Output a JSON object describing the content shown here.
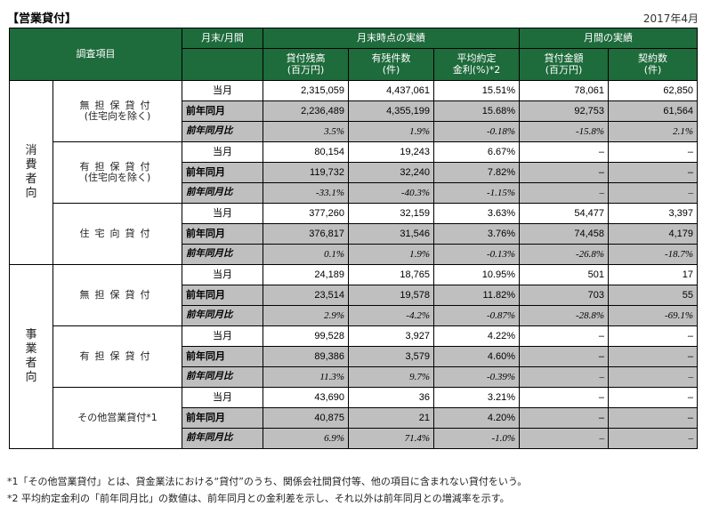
{
  "cut_top_text": "",
  "header": {
    "section_label": "【営業貸付】",
    "date": "2017年4月"
  },
  "table_header": {
    "period_col": "月末/月間",
    "survey_item": "調査項目",
    "month_end_group": "月末時点の実績",
    "monthly_group": "月間の実績",
    "col_balance": "貸付残高\n(百万円)",
    "col_balance_line1": "貸付残高",
    "col_balance_line2": "(百万円)",
    "col_count_line1": "有残件数",
    "col_count_line2": "(件)",
    "col_rate_line1": "平均約定",
    "col_rate_line2": "金利(%)*2",
    "col_amount_line1": "貸付金額",
    "col_amount_line2": "(百万円)",
    "col_contracts_line1": "契約数",
    "col_contracts_line2": "(件)"
  },
  "categories": {
    "consumer": "消費者向",
    "business": "事業者向"
  },
  "period_labels": {
    "current": "当月",
    "prev": "前年同月",
    "yoy": "前年同月比"
  },
  "rows": {
    "c1": {
      "name_line1": "無担保貸付",
      "name_line2": "(住宅向を除く)",
      "cur": [
        "2,315,059",
        "4,437,061",
        "15.51%",
        "78,061",
        "62,850"
      ],
      "prev": [
        "2,236,489",
        "4,355,199",
        "15.68%",
        "92,753",
        "61,564"
      ],
      "yoy": [
        "3.5%",
        "1.9%",
        "-0.18%",
        "-15.8%",
        "2.1%"
      ]
    },
    "c2": {
      "name_line1": "有担保貸付",
      "name_line2": "(住宅向を除く)",
      "cur": [
        "80,154",
        "19,243",
        "6.67%",
        "–",
        "–"
      ],
      "prev": [
        "119,732",
        "32,240",
        "7.82%",
        "–",
        "–"
      ],
      "yoy": [
        "-33.1%",
        "-40.3%",
        "-1.15%",
        "–",
        "–"
      ]
    },
    "c3": {
      "name_line1": "住宅向貸付",
      "name_line2": "",
      "cur": [
        "377,260",
        "32,159",
        "3.63%",
        "54,477",
        "3,397"
      ],
      "prev": [
        "376,817",
        "31,546",
        "3.76%",
        "74,458",
        "4,179"
      ],
      "yoy": [
        "0.1%",
        "1.9%",
        "-0.13%",
        "-26.8%",
        "-18.7%"
      ]
    },
    "b1": {
      "name_line1": "無担保貸付",
      "name_line2": "",
      "cur": [
        "24,189",
        "18,765",
        "10.95%",
        "501",
        "17"
      ],
      "prev": [
        "23,514",
        "19,578",
        "11.82%",
        "703",
        "55"
      ],
      "yoy": [
        "2.9%",
        "-4.2%",
        "-0.87%",
        "-28.8%",
        "-69.1%"
      ]
    },
    "b2": {
      "name_line1": "有担保貸付",
      "name_line2": "",
      "cur": [
        "99,528",
        "3,927",
        "4.22%",
        "–",
        "–"
      ],
      "prev": [
        "89,386",
        "3,579",
        "4.60%",
        "–",
        "–"
      ],
      "yoy": [
        "11.3%",
        "9.7%",
        "-0.39%",
        "–",
        "–"
      ]
    },
    "b3": {
      "name_line1": "その他営業貸付*1",
      "name_line2": "",
      "cur": [
        "43,690",
        "36",
        "3.21%",
        "–",
        "–"
      ],
      "prev": [
        "40,875",
        "21",
        "4.20%",
        "–",
        "–"
      ],
      "yoy": [
        "6.9%",
        "71.4%",
        "-1.0%",
        "–",
        "–"
      ]
    }
  },
  "notes": {
    "n1": "*1「その他営業貸付」とは、貸金業法における“貸付”のうち、関係会社間貸付等、他の項目に含まれない貸付をいう。",
    "n2": "*2 平均約定金利の「前年同月比」の数値は、前年同月との金利差を示し、それ以外は前年同月との増減率を示す。"
  }
}
